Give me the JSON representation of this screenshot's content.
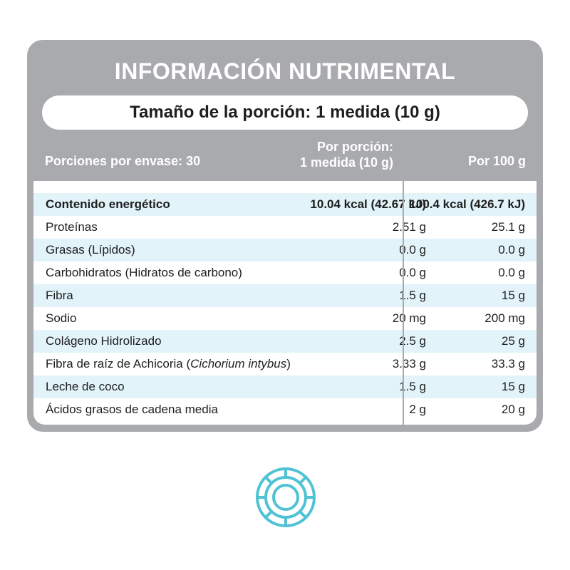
{
  "title": "INFORMACIÓN NUTRIMENTAL",
  "serving_size": "Tamaño de la porción: 1 medida (10 g)",
  "headers": {
    "servings_per_container": "Porciones por envase: 30",
    "per_serving_line1": "Por porción:",
    "per_serving_line2": "1 medida (10 g)",
    "per_100g": "Por 100 g"
  },
  "rows": [
    {
      "label": "Contenido energético",
      "per_serving": "10.04 kcal (42.67 kJ)",
      "per_100g": "100.4 kcal (426.7 kJ)"
    },
    {
      "label": "Proteínas",
      "per_serving": "2.51 g",
      "per_100g": "25.1 g"
    },
    {
      "label": "Grasas (Lípidos)",
      "per_serving": "0.0 g",
      "per_100g": "0.0 g"
    },
    {
      "label": "Carbohidratos (Hidratos de carbono)",
      "per_serving": "0.0 g",
      "per_100g": "0.0 g"
    },
    {
      "label": "Fibra",
      "per_serving": "1.5 g",
      "per_100g": "15 g"
    },
    {
      "label": "Sodio",
      "per_serving": "20 mg",
      "per_100g": "200 mg"
    },
    {
      "label": "Colágeno Hidrolizado",
      "per_serving": "2.5 g",
      "per_100g": "25 g"
    },
    {
      "label": "Fibra de raíz de Achicoria (",
      "label_italic": "Cichorium intybus",
      "label_end": ")",
      "per_serving": "3.33 g",
      "per_100g": "33.3 g"
    },
    {
      "label": "Leche de coco",
      "per_serving": "1.5 g",
      "per_100g": "15 g"
    },
    {
      "label": "Ácidos grasos de cadena media",
      "per_serving": "2 g",
      "per_100g": "20 g"
    }
  ],
  "colors": {
    "panel": "#a9aaad",
    "row_shade": "#e2f3f9",
    "icon": "#4fc3d4"
  },
  "icon": "coconut-slice-icon"
}
